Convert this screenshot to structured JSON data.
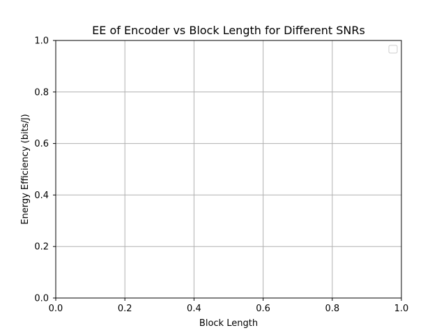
{
  "chart_data": {
    "type": "line",
    "title": "EE of Encoder vs Block Length for Different SNRs",
    "xlabel": "Block Length",
    "ylabel": "Energy Efficiency (bits/J)",
    "xlim": [
      0.0,
      1.0
    ],
    "ylim": [
      0.0,
      1.0
    ],
    "x_ticks": [
      "0.0",
      "0.2",
      "0.4",
      "0.6",
      "0.8",
      "1.0"
    ],
    "y_ticks": [
      "0.0",
      "0.2",
      "0.4",
      "0.6",
      "0.8",
      "1.0"
    ],
    "grid": true,
    "legend_position": "upper right",
    "legend_entries": [],
    "series": []
  },
  "colors": {
    "background": "#ffffff",
    "axes": "#000000",
    "grid": "#b0b0b0",
    "legend_border": "#cccccc"
  }
}
